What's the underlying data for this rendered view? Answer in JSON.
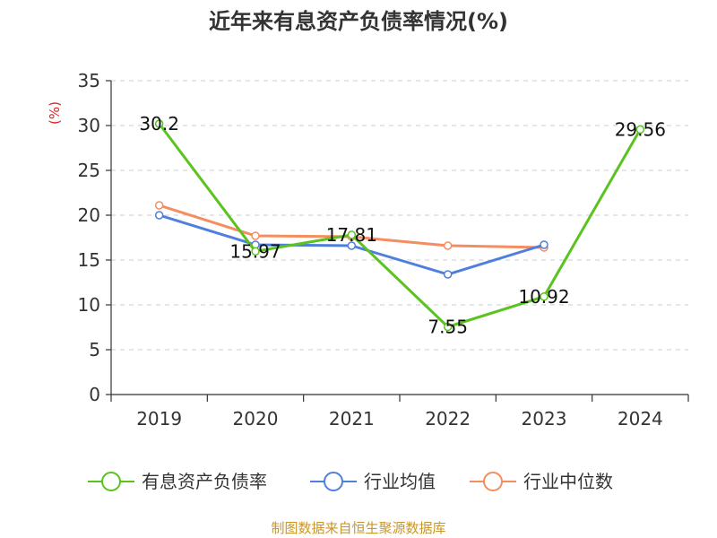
{
  "colors": {
    "company": "#5ac31f",
    "industry_avg": "#4f7fdc",
    "industry_median": "#f48d5f"
  },
  "chart_data": {
    "type": "line",
    "title": "近年来有息资产负债率情况(%)",
    "xlabel": "",
    "ylabel": "(%)",
    "categories": [
      "2019",
      "2020",
      "2021",
      "2022",
      "2023",
      "2024"
    ],
    "ylim": [
      0,
      35
    ],
    "yticks": [
      0,
      5,
      10,
      15,
      20,
      25,
      30,
      35
    ],
    "grid": true,
    "legend_position": "bottom",
    "series": [
      {
        "name": "有息资产负债率",
        "color": "#5ac31f",
        "values": [
          30.2,
          15.97,
          17.81,
          7.55,
          10.92,
          29.56
        ],
        "labels": [
          "30.2",
          "15.97",
          "17.81",
          "7.55",
          "10.92",
          "29.56"
        ]
      },
      {
        "name": "行业均值",
        "color": "#4f7fdc",
        "values": [
          20.0,
          16.7,
          16.6,
          13.4,
          16.7,
          null
        ]
      },
      {
        "name": "行业中位数",
        "color": "#f48d5f",
        "values": [
          21.1,
          17.7,
          17.6,
          16.6,
          16.4,
          null
        ]
      }
    ],
    "source": "制图数据来自恒生聚源数据库"
  }
}
